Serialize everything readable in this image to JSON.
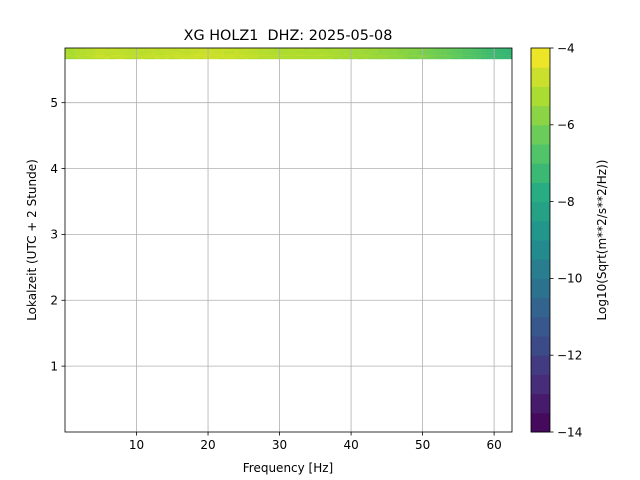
{
  "chart_data": {
    "type": "heatmap",
    "title": "XG HOLZ1  DHZ: 2025-05-08",
    "xlabel": "Frequency [Hz]",
    "ylabel": "Lokalzeit (UTC + 2 Stunde)",
    "xlim": [
      0,
      62.5
    ],
    "ylim": [
      5.83,
      0
    ],
    "xticks": [
      10,
      20,
      30,
      40,
      50,
      60
    ],
    "yticks": [
      1,
      2,
      3,
      4,
      5
    ],
    "grid": true,
    "colorbar": {
      "label": "Log10(Sqrt(m**2/s**2/Hz))",
      "min": -14,
      "max": -4,
      "ticks": [
        -14,
        -12,
        -10,
        -8,
        -6,
        -4
      ],
      "tick_labels": [
        "−14",
        "−12",
        "−10",
        "−8",
        "−6",
        "−4"
      ],
      "levels": 20,
      "colormap": "viridis"
    },
    "profile": {
      "frequency_hz": [
        0,
        5,
        10,
        15,
        20,
        25,
        30,
        35,
        40,
        45,
        50,
        55,
        60,
        62.5
      ],
      "log10_amplitude": [
        -5.3,
        -4.9,
        -5.0,
        -4.9,
        -4.8,
        -4.9,
        -5.2,
        -5.2,
        -5.4,
        -5.6,
        -6.0,
        -6.5,
        -7.2,
        -7.4
      ]
    },
    "bottom_band": {
      "from_hour": 5.67,
      "to_hour": 5.83,
      "value": -4.0
    }
  }
}
